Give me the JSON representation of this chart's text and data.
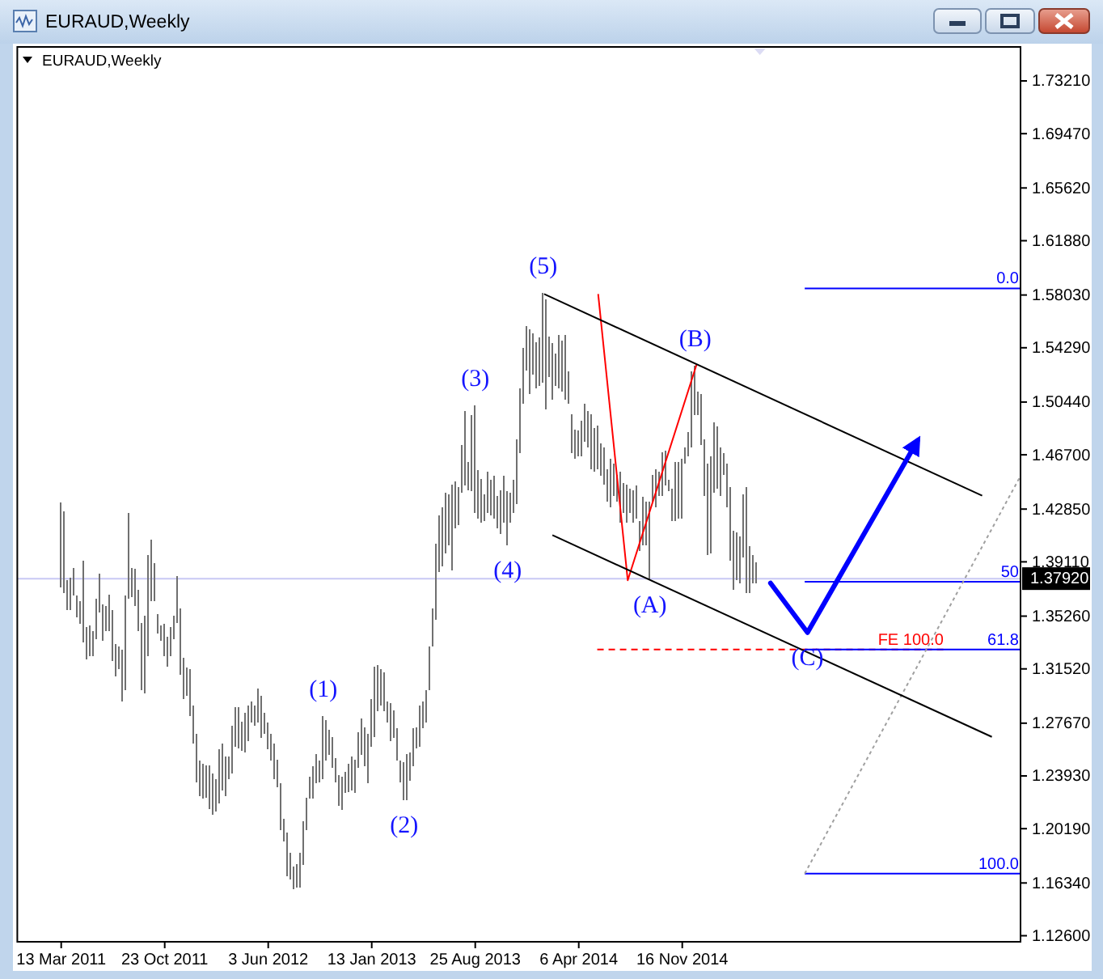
{
  "chart_data": {
    "type": "bar",
    "title": "EURAUD,Weekly",
    "subtitle": "EURAUD,Weekly",
    "x": [
      "2011-03-13",
      "2011-03-20",
      "2011-03-27",
      "2011-04-03",
      "2011-04-10",
      "2011-04-17",
      "2011-04-24",
      "2011-05-01",
      "2011-05-08",
      "2011-05-15",
      "2011-05-22",
      "2011-05-29",
      "2011-06-05",
      "2011-06-12",
      "2011-06-19",
      "2011-06-26",
      "2011-07-03",
      "2011-07-10",
      "2011-07-17",
      "2011-07-24",
      "2011-07-31",
      "2011-08-07",
      "2011-08-14",
      "2011-08-21",
      "2011-08-28",
      "2011-09-04",
      "2011-09-11",
      "2011-09-18",
      "2011-09-25",
      "2011-10-02",
      "2011-10-09",
      "2011-10-16",
      "2011-10-23",
      "2011-10-30",
      "2011-11-06",
      "2011-11-13",
      "2011-11-20",
      "2011-11-27",
      "2011-12-04",
      "2011-12-11",
      "2011-12-18",
      "2011-12-25",
      "2012-01-01",
      "2012-01-08",
      "2012-01-15",
      "2012-01-22",
      "2012-01-29",
      "2012-02-05",
      "2012-02-12",
      "2012-02-19",
      "2012-02-26",
      "2012-03-04",
      "2012-03-11",
      "2012-03-18",
      "2012-03-25",
      "2012-04-01",
      "2012-04-08",
      "2012-04-15",
      "2012-04-22",
      "2012-04-29",
      "2012-05-06",
      "2012-05-13",
      "2012-05-20",
      "2012-05-27",
      "2012-06-03",
      "2012-06-10",
      "2012-06-17",
      "2012-06-24",
      "2012-07-01",
      "2012-07-08",
      "2012-07-15",
      "2012-07-22",
      "2012-07-29",
      "2012-08-05",
      "2012-08-12",
      "2012-08-19",
      "2012-08-26",
      "2012-09-02",
      "2012-09-09",
      "2012-09-16",
      "2012-09-23",
      "2012-09-30",
      "2012-10-07",
      "2012-10-14",
      "2012-10-21",
      "2012-10-28",
      "2012-11-04",
      "2012-11-11",
      "2012-11-18",
      "2012-11-25",
      "2012-12-02",
      "2012-12-09",
      "2012-12-16",
      "2012-12-23",
      "2012-12-30",
      "2013-01-06",
      "2013-01-13",
      "2013-01-20",
      "2013-01-27",
      "2013-02-03",
      "2013-02-10",
      "2013-02-17",
      "2013-02-24",
      "2013-03-03",
      "2013-03-10",
      "2013-03-17",
      "2013-03-24",
      "2013-03-31",
      "2013-04-07",
      "2013-04-14",
      "2013-04-21",
      "2013-04-28",
      "2013-05-05",
      "2013-05-12",
      "2013-05-19",
      "2013-05-26",
      "2013-06-02",
      "2013-06-09",
      "2013-06-16",
      "2013-06-23",
      "2013-06-30",
      "2013-07-07",
      "2013-07-14",
      "2013-07-21",
      "2013-07-28",
      "2013-08-04",
      "2013-08-11",
      "2013-08-18",
      "2013-08-25",
      "2013-09-01",
      "2013-09-08",
      "2013-09-15",
      "2013-09-22",
      "2013-09-29",
      "2013-10-06",
      "2013-10-13",
      "2013-10-20",
      "2013-10-27",
      "2013-11-03",
      "2013-11-10",
      "2013-11-17",
      "2013-11-24",
      "2013-12-01",
      "2013-12-08",
      "2013-12-15",
      "2013-12-22",
      "2013-12-29",
      "2014-01-05",
      "2014-01-12",
      "2014-01-19",
      "2014-01-26",
      "2014-02-02",
      "2014-02-09",
      "2014-02-16",
      "2014-02-23",
      "2014-03-02",
      "2014-03-09",
      "2014-03-16",
      "2014-03-23",
      "2014-03-30",
      "2014-04-06",
      "2014-04-13",
      "2014-04-20",
      "2014-04-27",
      "2014-05-04",
      "2014-05-11",
      "2014-05-18",
      "2014-05-25",
      "2014-06-01",
      "2014-06-08",
      "2014-06-15",
      "2014-06-22",
      "2014-06-29",
      "2014-07-06",
      "2014-07-13",
      "2014-07-20",
      "2014-07-27",
      "2014-08-03",
      "2014-08-10",
      "2014-08-17",
      "2014-08-24",
      "2014-08-31",
      "2014-09-07",
      "2014-09-14",
      "2014-09-21",
      "2014-09-28",
      "2014-10-05",
      "2014-10-12",
      "2014-10-19",
      "2014-10-26",
      "2014-11-02",
      "2014-11-09",
      "2014-11-16",
      "2014-11-23",
      "2014-11-30",
      "2014-12-07",
      "2014-12-14",
      "2014-12-21",
      "2014-12-28",
      "2015-01-04",
      "2015-01-11",
      "2015-01-18",
      "2015-01-25",
      "2015-02-01",
      "2015-02-08",
      "2015-02-15",
      "2015-02-22",
      "2015-03-01",
      "2015-03-08",
      "2015-03-15",
      "2015-03-22",
      "2015-03-29",
      "2015-04-05",
      "2015-04-12",
      "2015-04-19",
      "2015-04-26"
    ],
    "xlim": [
      "2010-12-08",
      "2016-11-17"
    ],
    "xticks": [
      {
        "value": "2011-03-13",
        "label": "13 Mar 2011"
      },
      {
        "value": "2011-10-23",
        "label": "23 Oct 2011"
      },
      {
        "value": "2012-06-03",
        "label": "3 Jun 2012"
      },
      {
        "value": "2013-01-13",
        "label": "13 Jan 2013"
      },
      {
        "value": "2013-08-25",
        "label": "25 Aug 2013"
      },
      {
        "value": "2014-04-06",
        "label": "6 Apr 2014"
      },
      {
        "value": "2014-11-16",
        "label": "16 Nov 2014"
      }
    ],
    "ylim": [
      1.1217,
      1.7562
    ],
    "yticks": [
      {
        "value": 1.7321,
        "label": "1.73210"
      },
      {
        "value": 1.6947,
        "label": "1.69470"
      },
      {
        "value": 1.6562,
        "label": "1.65620"
      },
      {
        "value": 1.6188,
        "label": "1.61880"
      },
      {
        "value": 1.5803,
        "label": "1.58030"
      },
      {
        "value": 1.5429,
        "label": "1.54290"
      },
      {
        "value": 1.5044,
        "label": "1.50440"
      },
      {
        "value": 1.467,
        "label": "1.46700"
      },
      {
        "value": 1.4285,
        "label": "1.42850"
      },
      {
        "value": 1.3911,
        "label": "1.39110"
      },
      {
        "value": 1.3526,
        "label": "1.35260"
      },
      {
        "value": 1.3152,
        "label": "1.31520"
      },
      {
        "value": 1.2767,
        "label": "1.27670"
      },
      {
        "value": 1.2393,
        "label": "1.23930"
      },
      {
        "value": 1.2019,
        "label": "1.20190"
      },
      {
        "value": 1.1634,
        "label": "1.16340"
      },
      {
        "value": 1.126,
        "label": "1.12600"
      }
    ],
    "ref_lines": [
      {
        "axis": "y",
        "value": 1.3792,
        "label": "1.37920",
        "color": "#c8c8f4"
      }
    ],
    "series": [
      {
        "color": "#707070",
        "base": [
          1.373,
          1.369,
          1.357,
          1.357,
          1.367,
          1.352,
          1.347,
          1.334,
          1.322,
          1.324,
          1.324,
          1.336,
          1.355,
          1.335,
          1.342,
          1.342,
          1.321,
          1.31,
          1.315,
          1.292,
          1.3,
          1.365,
          1.366,
          1.36,
          1.342,
          1.3,
          1.298,
          1.324,
          1.363,
          1.363,
          1.34,
          1.335,
          1.324,
          1.317,
          1.324,
          1.336,
          1.348,
          1.311,
          1.294,
          1.296,
          1.282,
          1.262,
          1.235,
          1.225,
          1.223,
          1.224,
          1.216,
          1.212,
          1.214,
          1.22,
          1.229,
          1.225,
          1.237,
          1.241,
          1.26,
          1.259,
          1.257,
          1.256,
          1.264,
          1.277,
          1.275,
          1.277,
          1.266,
          1.269,
          1.258,
          1.25,
          1.237,
          1.231,
          1.201,
          1.193,
          1.168,
          1.166,
          1.159,
          1.16,
          1.16,
          1.176,
          1.201,
          1.223,
          1.223,
          1.234,
          1.235,
          1.237,
          1.25,
          1.254,
          1.245,
          1.235,
          1.218,
          1.215,
          1.227,
          1.228,
          1.229,
          1.227,
          1.245,
          1.254,
          1.246,
          1.234,
          1.26,
          1.267,
          1.285,
          1.289,
          1.285,
          1.277,
          1.264,
          1.266,
          1.25,
          1.235,
          1.222,
          1.222,
          1.236,
          1.246,
          1.259,
          1.26,
          1.273,
          1.277,
          1.3,
          1.331,
          1.35,
          1.384,
          1.388,
          1.397,
          1.403,
          1.385,
          1.415,
          1.417,
          1.44,
          1.445,
          1.442,
          1.441,
          1.426,
          1.422,
          1.419,
          1.42,
          1.426,
          1.424,
          1.422,
          1.415,
          1.411,
          1.419,
          1.403,
          1.419,
          1.426,
          1.432,
          1.468,
          1.503,
          1.527,
          1.51,
          1.524,
          1.514,
          1.516,
          1.518,
          1.499,
          1.522,
          1.506,
          1.516,
          1.514,
          1.512,
          1.506,
          1.503,
          1.468,
          1.464,
          1.466,
          1.466,
          1.476,
          1.472,
          1.457,
          1.455,
          1.457,
          1.452,
          1.446,
          1.434,
          1.43,
          1.438,
          1.434,
          1.419,
          1.426,
          1.419,
          1.426,
          1.419,
          1.422,
          1.399,
          1.403,
          1.403,
          1.378,
          1.434,
          1.43,
          1.438,
          1.438,
          1.445,
          1.441,
          1.42,
          1.42,
          1.422,
          1.422,
          1.461,
          1.466,
          1.472,
          1.495,
          1.495,
          1.474,
          1.438,
          1.396,
          1.397,
          1.44,
          1.443,
          1.438,
          1.453,
          1.43,
          1.392,
          1.371,
          1.378,
          1.376,
          1.394,
          1.369,
          1.369,
          1.376,
          1.376
        ],
        "values": [
          0.06,
          0.058,
          0.021,
          0.023,
          0.02,
          0.015,
          0.016,
          0.058,
          0.023,
          0.022,
          0.018,
          0.029,
          0.028,
          0.026,
          0.018,
          0.026,
          0.036,
          0.023,
          0.016,
          0.037,
          0.067,
          0.061,
          0.021,
          0.026,
          0.029,
          0.048,
          0.055,
          0.072,
          0.044,
          0.027,
          0.014,
          0.011,
          0.023,
          0.021,
          0.021,
          0.017,
          0.033,
          0.047,
          0.029,
          0.02,
          0.033,
          0.027,
          0.034,
          0.025,
          0.025,
          0.023,
          0.031,
          0.029,
          0.023,
          0.038,
          0.033,
          0.028,
          0.016,
          0.034,
          0.028,
          0.029,
          0.021,
          0.028,
          0.025,
          0.015,
          0.014,
          0.024,
          0.03,
          0.015,
          0.019,
          0.019,
          0.025,
          0.02,
          0.033,
          0.016,
          0.031,
          0.019,
          0.016,
          0.017,
          0.025,
          0.031,
          0.023,
          0.016,
          0.023,
          0.021,
          0.015,
          0.045,
          0.029,
          0.018,
          0.022,
          0.017,
          0.022,
          0.024,
          0.015,
          0.02,
          0.024,
          0.024,
          0.025,
          0.026,
          0.028,
          0.035,
          0.034,
          0.05,
          0.033,
          0.026,
          0.028,
          0.015,
          0.027,
          0.02,
          0.023,
          0.015,
          0.027,
          0.033,
          0.02,
          0.027,
          0.015,
          0.029,
          0.019,
          0.023,
          0.031,
          0.027,
          0.054,
          0.04,
          0.042,
          0.043,
          0.036,
          0.061,
          0.033,
          0.027,
          0.034,
          0.053,
          0.02,
          0.054,
          0.076,
          0.034,
          0.031,
          0.019,
          0.029,
          0.025,
          0.03,
          0.023,
          0.031,
          0.033,
          0.038,
          0.021,
          0.023,
          0.046,
          0.046,
          0.04,
          0.031,
          0.046,
          0.029,
          0.033,
          0.034,
          0.064,
          0.078,
          0.029,
          0.04,
          0.023,
          0.038,
          0.036,
          0.046,
          0.023,
          0.028,
          0.021,
          0.018,
          0.025,
          0.027,
          0.026,
          0.039,
          0.031,
          0.031,
          0.023,
          0.026,
          0.023,
          0.034,
          0.023,
          0.019,
          0.036,
          0.021,
          0.027,
          0.017,
          0.023,
          0.023,
          0.021,
          0.034,
          0.031,
          0.056,
          0.019,
          0.027,
          0.017,
          0.031,
          0.025,
          0.008,
          0.023,
          0.042,
          0.04,
          0.042,
          0.011,
          0.017,
          0.054,
          0.035,
          0.017,
          0.036,
          0.04,
          0.065,
          0.069,
          0.05,
          0.044,
          0.034,
          0.015,
          0.031,
          0.052,
          0.042,
          0.034,
          0.033,
          0.045,
          0.075,
          0.033,
          0.02,
          0.015
        ]
      },
      {
        "type": "line",
        "name": "FE 100.0",
        "color": "#ff0000",
        "line_style": "dashed",
        "x": [
          "2014-05-16",
          "2016-06-07"
        ],
        "values": [
          1.329,
          1.329
        ]
      },
      {
        "type": "line",
        "name": "0.0",
        "color": "#0000ff",
        "x": [
          "2015-08-08",
          "2016-11-17"
        ],
        "values": [
          1.585,
          1.585
        ]
      },
      {
        "type": "line",
        "name": "50",
        "color": "#0000ff",
        "x": [
          "2015-08-08",
          "2016-11-17"
        ],
        "values": [
          1.377,
          1.377
        ]
      },
      {
        "type": "line",
        "name": "61.8",
        "color": "#0000ff",
        "x": [
          "2015-08-08",
          "2016-11-17"
        ],
        "values": [
          1.329,
          1.329
        ]
      },
      {
        "type": "line",
        "name": "100.0",
        "color": "#0000ff",
        "x": [
          "2015-08-08",
          "2016-11-17"
        ],
        "values": [
          1.17,
          1.17
        ]
      },
      {
        "type": "line",
        "color": "#a0a0a0",
        "line_style": "dotted",
        "x": [
          "2015-08-08",
          "2016-11-17"
        ],
        "values": [
          1.17,
          1.452
        ]
      },
      {
        "type": "line",
        "color": "#ff0000",
        "x": [
          "2014-05-18",
          "2014-07-21",
          "2014-12-17"
        ],
        "values": [
          1.581,
          1.378,
          1.531
        ]
      },
      {
        "type": "line",
        "color": "#000000",
        "x": [
          "2014-01-21",
          "2016-08-26"
        ],
        "values": [
          1.581,
          1.438
        ]
      },
      {
        "type": "line",
        "color": "#000000",
        "x": [
          "2014-02-08",
          "2016-09-16"
        ],
        "values": [
          1.41,
          1.267
        ]
      },
      {
        "type": "line",
        "color": "#0000ff",
        "x": [
          "2015-05-26",
          "2015-08-14",
          "2016-04-08"
        ],
        "values": [
          1.376,
          1.341,
          1.477
        ]
      }
    ],
    "annotations": [
      {
        "text": "(1)",
        "x": "2012-09-30",
        "y": 1.282
      },
      {
        "text": "(2)",
        "x": "2013-03-24",
        "y": 1.222
      },
      {
        "text": "(3)",
        "x": "2013-08-25",
        "y": 1.502
      },
      {
        "text": "(4)",
        "x": "2013-11-03",
        "y": 1.403
      },
      {
        "text": "(5)",
        "x": "2014-01-19",
        "y": 1.582
      },
      {
        "text": "(A)",
        "x": "2014-09-07",
        "y": 1.378
      },
      {
        "text": "(B)",
        "x": "2014-12-14",
        "y": 1.53
      },
      {
        "text": "(C)",
        "x": "2015-08-14",
        "y": 1.341
      }
    ]
  }
}
